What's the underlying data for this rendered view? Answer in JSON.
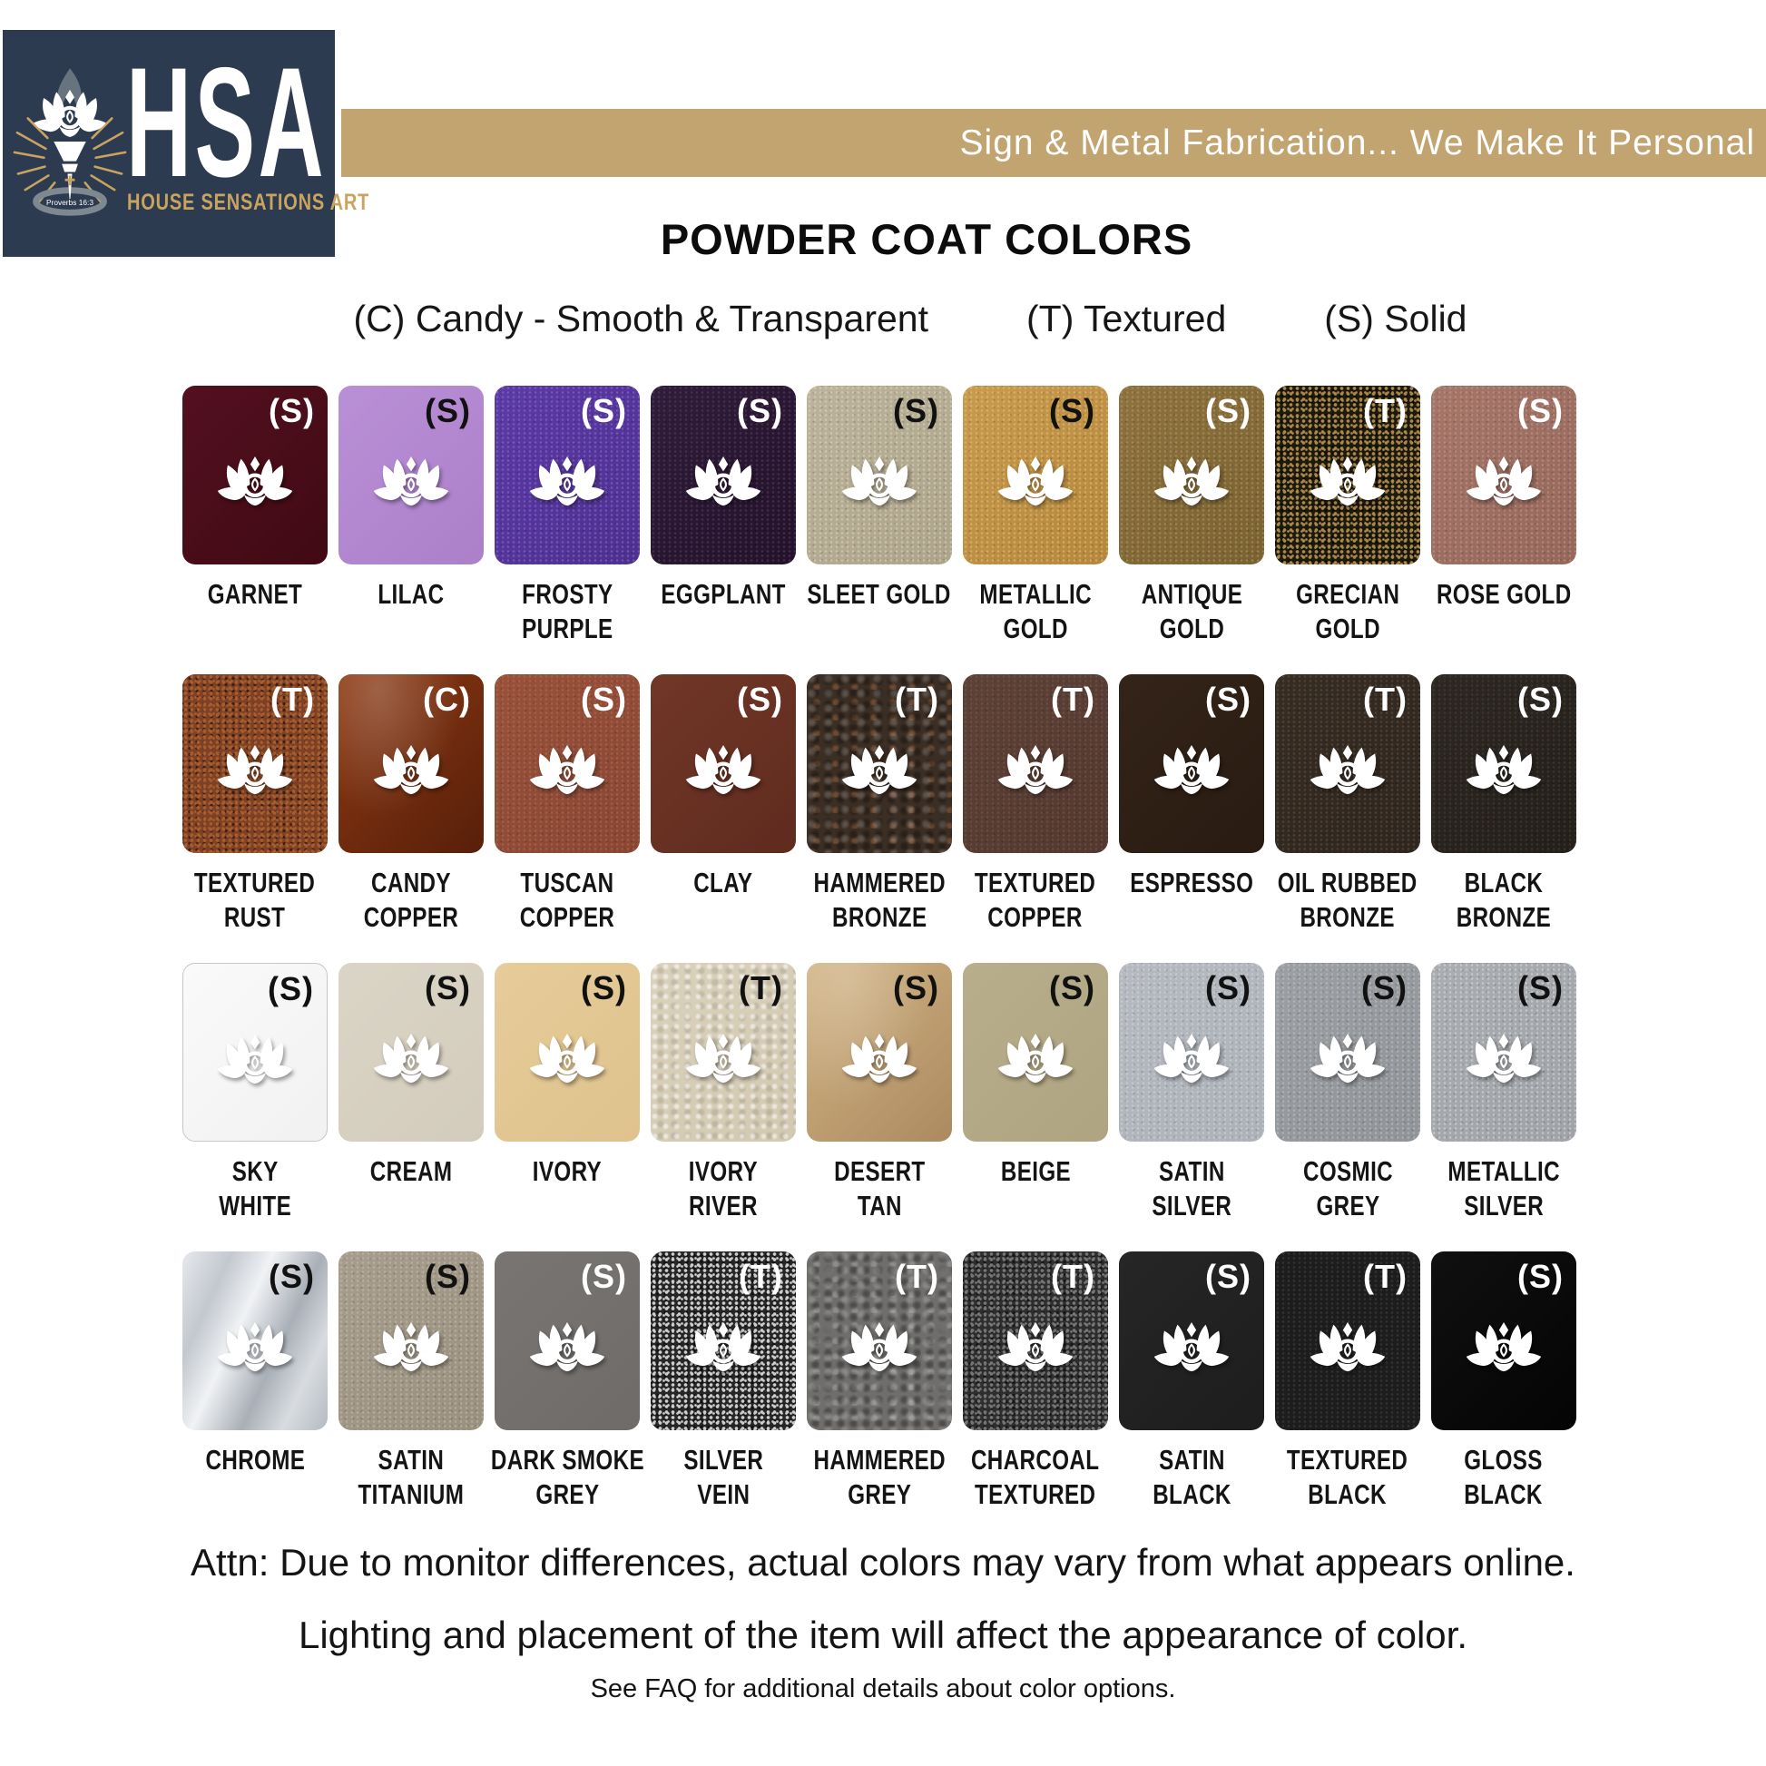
{
  "header": {
    "logo": {
      "acronym": "HSA",
      "name": "HOUSE SENSATIONS ART",
      "verse": "Proverbs 16:3",
      "navy": "#2d3b50",
      "gold": "#c9a45f"
    },
    "banner": {
      "text": "Sign & Metal Fabrication... We Make It Personal",
      "color": "#c2a471"
    },
    "title": "POWDER COAT COLORS",
    "legend": {
      "candy": "(C) Candy - Smooth & Transparent",
      "textured": "(T) Textured",
      "solid": "(S) Solid"
    }
  },
  "palette": {
    "rows": [
      [
        {
          "name": "Garnet",
          "code": "S",
          "badge": "#ffffff",
          "lines": [
            "GARNET"
          ],
          "base": "#531020",
          "base2": "#400a13",
          "texture": "smooth"
        },
        {
          "name": "Lilac",
          "code": "S",
          "badge": "#111111",
          "lines": [
            "LILAC"
          ],
          "base": "#b98fd6",
          "base2": "#ac80c9",
          "texture": "smooth"
        },
        {
          "name": "Frosty Purple",
          "code": "S",
          "badge": "#ffffff",
          "lines": [
            "FROSTY",
            "PURPLE"
          ],
          "base": "#5c3ba6",
          "base2": "#4d2f90",
          "speck": "#8d71c8",
          "texture": "sparkle"
        },
        {
          "name": "Eggplant",
          "code": "S",
          "badge": "#ffffff",
          "lines": [
            "EGGPLANT"
          ],
          "base": "#301d3b",
          "base2": "#231229",
          "speck": "#5c4068",
          "texture": "sparkle"
        },
        {
          "name": "Sleet Gold",
          "code": "S",
          "badge": "#111111",
          "lines": [
            "SLEET GOLD"
          ],
          "base": "#bcb39c",
          "base2": "#aca389",
          "speck": "#ded7c2",
          "texture": "sparkle"
        },
        {
          "name": "Metallic Gold",
          "code": "S",
          "badge": "#111111",
          "lines": [
            "METALLIC",
            "GOLD"
          ],
          "base": "#c89b4f",
          "base2": "#b5873d",
          "speck": "#e6c37a",
          "texture": "sparkle"
        },
        {
          "name": "Antique Gold",
          "code": "S",
          "badge": "#ffffff",
          "lines": [
            "ANTIQUE",
            "GOLD"
          ],
          "base": "#8e7340",
          "base2": "#7a6132",
          "speck": "#b59c60",
          "texture": "sparkle"
        },
        {
          "name": "Grecian Gold",
          "code": "T",
          "badge": "#ffffff",
          "lines": [
            "GRECIAN",
            "GOLD"
          ],
          "base": "#1f1a10",
          "speck": "#b2904c",
          "texture": "speckle"
        },
        {
          "name": "Rose Gold",
          "code": "S",
          "badge": "#ffffff",
          "lines": [
            "ROSE GOLD"
          ],
          "base": "#a57769",
          "base2": "#95665a",
          "speck": "#c49c8e",
          "texture": "sparkle"
        }
      ],
      [
        {
          "name": "Textured Rust",
          "code": "T",
          "badge": "#ffffff",
          "lines": [
            "TEXTURED",
            "RUST"
          ],
          "base": "#7e4126",
          "speck": "#a9602f",
          "texture": "speckle"
        },
        {
          "name": "Candy Copper",
          "code": "C",
          "badge": "#ffffff",
          "lines": [
            "CANDY",
            "COPPER"
          ],
          "base": "#8d3912",
          "base2": "#571f0a",
          "texture": "gloss"
        },
        {
          "name": "Tuscan Copper",
          "code": "S",
          "badge": "#ffffff",
          "lines": [
            "TUSCAN",
            "COPPER"
          ],
          "base": "#98523b",
          "base2": "#884634",
          "speck": "#b46e51",
          "texture": "sparkle"
        },
        {
          "name": "Clay",
          "code": "S",
          "badge": "#ffffff",
          "lines": [
            "CLAY"
          ],
          "base": "#713727",
          "base2": "#5f2b1e",
          "texture": "smooth"
        },
        {
          "name": "Hammered Bronze",
          "code": "T",
          "badge": "#ffffff",
          "lines": [
            "HAMMERED",
            "BRONZE"
          ],
          "base": "#3b2e24",
          "speck": "rgba(170,110,69,.45)",
          "texture": "hammer"
        },
        {
          "name": "Textured Copper",
          "code": "T",
          "badge": "#ffffff",
          "lines": [
            "TEXTURED",
            "COPPER"
          ],
          "base": "#5d4239",
          "base2": "#52382f",
          "speck": "#7d584a",
          "texture": "sparkle"
        },
        {
          "name": "Espresso",
          "code": "S",
          "badge": "#ffffff",
          "lines": [
            "ESPRESSO"
          ],
          "base": "#342419",
          "base2": "#291b12",
          "texture": "smooth"
        },
        {
          "name": "Oil Rubbed Bronze",
          "code": "T",
          "badge": "#ffffff",
          "lines": [
            "OIL RUBBED",
            "BRONZE"
          ],
          "base": "#362d25",
          "base2": "#2e2620",
          "speck": "#6b5438",
          "texture": "sparkle"
        },
        {
          "name": "Black Bronze",
          "code": "S",
          "badge": "#ffffff",
          "lines": [
            "BLACK",
            "BRONZE"
          ],
          "base": "#2d2824",
          "base2": "#231f1a",
          "speck": "#4e4334",
          "texture": "sparkle"
        }
      ],
      [
        {
          "name": "Sky White",
          "code": "S",
          "badge": "#111111",
          "lines": [
            "SKY",
            "WHITE"
          ],
          "base": "#fafafa",
          "base2": "#f1f1f1",
          "texture": "smooth",
          "border": "#c6c6c6"
        },
        {
          "name": "Cream",
          "code": "S",
          "badge": "#111111",
          "lines": [
            "CREAM"
          ],
          "base": "#dbd5c7",
          "base2": "#d3ccbc",
          "texture": "smooth"
        },
        {
          "name": "Ivory",
          "code": "S",
          "badge": "#111111",
          "lines": [
            "IVORY"
          ],
          "base": "#e6cc9a",
          "base2": "#dfc28c",
          "texture": "smooth"
        },
        {
          "name": "Ivory River",
          "code": "T",
          "badge": "#111111",
          "lines": [
            "IVORY",
            "RIVER"
          ],
          "base": "#dad1bc",
          "base2": "#d3c9b2",
          "texture": "stucco"
        },
        {
          "name": "Desert Tan",
          "code": "S",
          "badge": "#111111",
          "lines": [
            "DESERT",
            "TAN"
          ],
          "base": "#d2b485",
          "base2": "#ab8a5f",
          "texture": "gloss"
        },
        {
          "name": "Beige",
          "code": "S",
          "badge": "#111111",
          "lines": [
            "BEIGE"
          ],
          "base": "#b8ae8b",
          "base2": "#afa481",
          "texture": "smooth"
        },
        {
          "name": "Satin Silver",
          "code": "S",
          "badge": "#111111",
          "lines": [
            "SATIN",
            "SILVER"
          ],
          "base": "#b6bac0",
          "base2": "#acb2b8",
          "speck": "#d4d8dc",
          "texture": "sparkle"
        },
        {
          "name": "Cosmic Grey",
          "code": "S",
          "badge": "#111111",
          "lines": [
            "COSMIC",
            "GREY"
          ],
          "base": "#9c9fa3",
          "base2": "#909397",
          "speck": "#c0c3c7",
          "texture": "sparkle"
        },
        {
          "name": "Metallic Silver",
          "code": "S",
          "badge": "#111111",
          "lines": [
            "METALLIC",
            "SILVER"
          ],
          "base": "#aaadb1",
          "base2": "#9fa2a6",
          "speck": "#dcdee1",
          "texture": "sparkle"
        }
      ],
      [
        {
          "name": "Chrome",
          "code": "S",
          "badge": "#111111",
          "lines": [
            "CHROME"
          ],
          "base": "#d9dde1",
          "base2": "#9aa1a9",
          "texture": "chrome"
        },
        {
          "name": "Satin Titanium",
          "code": "S",
          "badge": "#111111",
          "lines": [
            "SATIN",
            "TITANIUM"
          ],
          "base": "#a69d8d",
          "base2": "#9a9080",
          "speck": "#c6beb0",
          "texture": "sparkle"
        },
        {
          "name": "Dark Smoke Grey",
          "code": "S",
          "badge": "#ffffff",
          "lines": [
            "DARK SMOKE",
            "GREY"
          ],
          "base": "#787572",
          "base2": "#6e6b68",
          "texture": "smooth"
        },
        {
          "name": "Silver Vein",
          "code": "T",
          "badge": "#ffffff",
          "lines": [
            "SILVER",
            "VEIN"
          ],
          "base": "#262626",
          "speck": "#d6d6d6",
          "texture": "speckle"
        },
        {
          "name": "Hammered Grey",
          "code": "T",
          "badge": "#ffffff",
          "lines": [
            "HAMMERED",
            "GREY"
          ],
          "base": "#6f6e6c",
          "speck": "rgba(200,200,200,.35)",
          "texture": "hammer"
        },
        {
          "name": "Charcoal Textured",
          "code": "T",
          "badge": "#ffffff",
          "lines": [
            "CHARCOAL",
            "TEXTURED"
          ],
          "base": "#2e2e2e",
          "speck": "#7a7a7a",
          "texture": "speckle"
        },
        {
          "name": "Satin Black",
          "code": "S",
          "badge": "#ffffff",
          "lines": [
            "SATIN",
            "BLACK"
          ],
          "base": "#262626",
          "base2": "#1d1d1d",
          "texture": "smooth"
        },
        {
          "name": "Textured Black",
          "code": "T",
          "badge": "#ffffff",
          "lines": [
            "TEXTURED",
            "BLACK"
          ],
          "base": "#1d1d1d",
          "speck": "#454545",
          "texture": "sparkle"
        },
        {
          "name": "Gloss Black",
          "code": "S",
          "badge": "#ffffff",
          "lines": [
            "GLOSS",
            "BLACK"
          ],
          "base": "#101010",
          "base2": "#040404",
          "texture": "smooth"
        }
      ]
    ]
  },
  "footer": {
    "attn_line1": "Attn: Due to monitor differences, actual colors may vary from what appears online.",
    "attn_line2": "Lighting and placement of the item will affect the appearance of color.",
    "faq": "See FAQ for additional details about color options."
  }
}
